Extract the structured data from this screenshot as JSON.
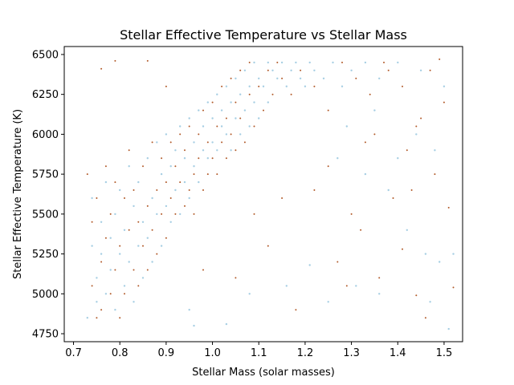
{
  "chart_data": {
    "type": "scatter",
    "title": "Stellar Effective Temperature vs Stellar Mass",
    "xlabel": "Stellar Mass (solar masses)",
    "ylabel": "Stellar Effective Temperature (K)",
    "xlim": [
      0.68,
      1.54
    ],
    "ylim": [
      4700,
      6550
    ],
    "xticks": [
      "0.7",
      "0.8",
      "0.9",
      "1.0",
      "1.1",
      "1.2",
      "1.3",
      "1.4",
      "1.5"
    ],
    "yticks": [
      "4750",
      "5000",
      "5250",
      "5500",
      "5750",
      "6000",
      "6250",
      "6500"
    ],
    "grid": false,
    "legend": "none",
    "series": [
      {
        "color": "#a6cee3",
        "points": [
          [
            0.73,
            4850
          ],
          [
            0.74,
            5300
          ],
          [
            0.74,
            5600
          ],
          [
            0.75,
            5100
          ],
          [
            0.75,
            4950
          ],
          [
            0.76,
            5450
          ],
          [
            0.76,
            5250
          ],
          [
            0.77,
            5700
          ],
          [
            0.77,
            5000
          ],
          [
            0.78,
            5350
          ],
          [
            0.78,
            5150
          ],
          [
            0.79,
            5500
          ],
          [
            0.79,
            4900
          ],
          [
            0.8,
            5250
          ],
          [
            0.8,
            5650
          ],
          [
            0.81,
            5050
          ],
          [
            0.81,
            5400
          ],
          [
            0.82,
            5800
          ],
          [
            0.82,
            5200
          ],
          [
            0.83,
            5550
          ],
          [
            0.83,
            4950
          ],
          [
            0.84,
            5300
          ],
          [
            0.84,
            5700
          ],
          [
            0.85,
            5450
          ],
          [
            0.85,
            5100
          ],
          [
            0.86,
            5850
          ],
          [
            0.86,
            5350
          ],
          [
            0.87,
            5600
          ],
          [
            0.87,
            5200
          ],
          [
            0.88,
            5950
          ],
          [
            0.88,
            5500
          ],
          [
            0.89,
            5750
          ],
          [
            0.89,
            5300
          ],
          [
            0.9,
            6000
          ],
          [
            0.9,
            5550
          ],
          [
            0.91,
            5800
          ],
          [
            0.91,
            5450
          ],
          [
            0.92,
            5900
          ],
          [
            0.92,
            5650
          ],
          [
            0.93,
            6050
          ],
          [
            0.93,
            5500
          ],
          [
            0.94,
            5850
          ],
          [
            0.94,
            5700
          ],
          [
            0.95,
            6100
          ],
          [
            0.95,
            5600
          ],
          [
            0.96,
            5950
          ],
          [
            0.96,
            5800
          ],
          [
            0.97,
            6150
          ],
          [
            0.97,
            5700
          ],
          [
            0.98,
            6050
          ],
          [
            0.98,
            5900
          ],
          [
            0.99,
            6200
          ],
          [
            0.99,
            5850
          ],
          [
            1.0,
            6100
          ],
          [
            1.0,
            5950
          ],
          [
            1.01,
            6250
          ],
          [
            1.01,
            5900
          ],
          [
            1.02,
            6150
          ],
          [
            1.02,
            6050
          ],
          [
            1.03,
            6300
          ],
          [
            1.03,
            6000
          ],
          [
            1.04,
            6200
          ],
          [
            1.04,
            5900
          ],
          [
            1.05,
            6350
          ],
          [
            1.05,
            6100
          ],
          [
            1.06,
            6250
          ],
          [
            1.06,
            6000
          ],
          [
            1.07,
            6400
          ],
          [
            1.07,
            6150
          ],
          [
            1.08,
            6300
          ],
          [
            1.08,
            6050
          ],
          [
            1.09,
            6450
          ],
          [
            1.09,
            6200
          ],
          [
            1.1,
            6350
          ],
          [
            1.1,
            6100
          ],
          [
            1.11,
            6300
          ],
          [
            1.12,
            6450
          ],
          [
            1.12,
            6200
          ],
          [
            1.13,
            6400
          ],
          [
            1.14,
            6350
          ],
          [
            1.15,
            6450
          ],
          [
            1.16,
            6300
          ],
          [
            1.17,
            6400
          ],
          [
            1.18,
            6450
          ],
          [
            1.19,
            6350
          ],
          [
            1.2,
            6300
          ],
          [
            1.21,
            6450
          ],
          [
            1.22,
            6400
          ],
          [
            1.24,
            6350
          ],
          [
            1.26,
            6450
          ],
          [
            1.28,
            6300
          ],
          [
            1.3,
            6400
          ],
          [
            1.33,
            6450
          ],
          [
            1.36,
            6350
          ],
          [
            1.4,
            6450
          ],
          [
            1.45,
            6400
          ],
          [
            1.5,
            6300
          ],
          [
            0.96,
            4800
          ],
          [
            0.95,
            4900
          ],
          [
            1.27,
            5850
          ],
          [
            1.33,
            5750
          ],
          [
            1.38,
            5650
          ],
          [
            1.42,
            5400
          ],
          [
            1.46,
            5250
          ],
          [
            1.49,
            5200
          ],
          [
            1.51,
            4780
          ],
          [
            1.21,
            5180
          ],
          [
            1.16,
            5050
          ],
          [
            1.08,
            5000
          ],
          [
            1.03,
            4810
          ],
          [
            1.25,
            4950
          ],
          [
            1.31,
            5050
          ],
          [
            1.36,
            5000
          ],
          [
            1.47,
            4950
          ],
          [
            1.52,
            5250
          ],
          [
            1.4,
            5850
          ],
          [
            1.44,
            6000
          ],
          [
            1.48,
            5900
          ],
          [
            1.35,
            6150
          ],
          [
            1.29,
            6050
          ]
        ]
      },
      {
        "color": "#b15928",
        "points": [
          [
            0.73,
            5750
          ],
          [
            0.74,
            5450
          ],
          [
            0.74,
            5050
          ],
          [
            0.75,
            4850
          ],
          [
            0.75,
            5600
          ],
          [
            0.76,
            5200
          ],
          [
            0.76,
            4900
          ],
          [
            0.77,
            5350
          ],
          [
            0.77,
            5800
          ],
          [
            0.78,
            5000
          ],
          [
            0.78,
            5500
          ],
          [
            0.79,
            5150
          ],
          [
            0.79,
            5700
          ],
          [
            0.8,
            4850
          ],
          [
            0.8,
            5300
          ],
          [
            0.81,
            5600
          ],
          [
            0.81,
            5000
          ],
          [
            0.82,
            5400
          ],
          [
            0.82,
            5900
          ],
          [
            0.83,
            5150
          ],
          [
            0.83,
            5650
          ],
          [
            0.84,
            5050
          ],
          [
            0.84,
            5450
          ],
          [
            0.85,
            5800
          ],
          [
            0.85,
            5300
          ],
          [
            0.86,
            5550
          ],
          [
            0.86,
            5150
          ],
          [
            0.87,
            5950
          ],
          [
            0.87,
            5400
          ],
          [
            0.88,
            5650
          ],
          [
            0.88,
            5250
          ],
          [
            0.89,
            5850
          ],
          [
            0.89,
            5500
          ],
          [
            0.9,
            5700
          ],
          [
            0.9,
            5350
          ],
          [
            0.91,
            5950
          ],
          [
            0.91,
            5600
          ],
          [
            0.92,
            5800
          ],
          [
            0.92,
            5500
          ],
          [
            0.93,
            6000
          ],
          [
            0.93,
            5700
          ],
          [
            0.94,
            5550
          ],
          [
            0.94,
            5900
          ],
          [
            0.95,
            5650
          ],
          [
            0.95,
            6050
          ],
          [
            0.96,
            5750
          ],
          [
            0.96,
            5500
          ],
          [
            0.97,
            6000
          ],
          [
            0.97,
            5850
          ],
          [
            0.98,
            5650
          ],
          [
            0.98,
            6150
          ],
          [
            0.99,
            5950
          ],
          [
            0.99,
            5750
          ],
          [
            1.0,
            6200
          ],
          [
            1.0,
            5850
          ],
          [
            1.01,
            6050
          ],
          [
            1.01,
            5750
          ],
          [
            1.02,
            6300
          ],
          [
            1.02,
            5950
          ],
          [
            1.03,
            6100
          ],
          [
            1.03,
            5850
          ],
          [
            1.04,
            6350
          ],
          [
            1.04,
            6000
          ],
          [
            1.05,
            6200
          ],
          [
            1.05,
            5900
          ],
          [
            1.06,
            6400
          ],
          [
            1.06,
            6100
          ],
          [
            1.07,
            5950
          ],
          [
            1.08,
            6250
          ],
          [
            1.08,
            6450
          ],
          [
            1.09,
            6050
          ],
          [
            1.1,
            6300
          ],
          [
            1.11,
            6150
          ],
          [
            1.12,
            6400
          ],
          [
            1.13,
            6250
          ],
          [
            1.14,
            6450
          ],
          [
            1.15,
            6350
          ],
          [
            1.17,
            6250
          ],
          [
            1.19,
            6400
          ],
          [
            1.22,
            6300
          ],
          [
            1.25,
            6150
          ],
          [
            1.28,
            6450
          ],
          [
            1.31,
            6350
          ],
          [
            1.34,
            6250
          ],
          [
            1.37,
            6450
          ],
          [
            1.41,
            6300
          ],
          [
            1.44,
            6050
          ],
          [
            1.47,
            6400
          ],
          [
            1.5,
            6200
          ],
          [
            0.76,
            6410
          ],
          [
            0.79,
            6460
          ],
          [
            0.86,
            6460
          ],
          [
            0.9,
            6300
          ],
          [
            1.46,
            4850
          ],
          [
            1.36,
            5100
          ],
          [
            1.41,
            5280
          ],
          [
            1.44,
            4990
          ],
          [
            1.05,
            5100
          ],
          [
            1.12,
            5300
          ],
          [
            1.18,
            4900
          ],
          [
            1.3,
            5500
          ],
          [
            1.51,
            5540
          ],
          [
            1.39,
            5600
          ],
          [
            1.43,
            5650
          ],
          [
            1.48,
            5750
          ],
          [
            1.33,
            5950
          ],
          [
            1.25,
            5800
          ],
          [
            1.22,
            5650
          ],
          [
            0.98,
            5150
          ],
          [
            1.09,
            5500
          ],
          [
            1.15,
            5600
          ],
          [
            1.27,
            5200
          ],
          [
            1.52,
            5040
          ],
          [
            1.49,
            6470
          ],
          [
            1.45,
            6100
          ],
          [
            1.42,
            5900
          ],
          [
            1.38,
            6400
          ],
          [
            1.35,
            6000
          ],
          [
            1.32,
            5400
          ],
          [
            1.29,
            5050
          ]
        ]
      }
    ]
  }
}
